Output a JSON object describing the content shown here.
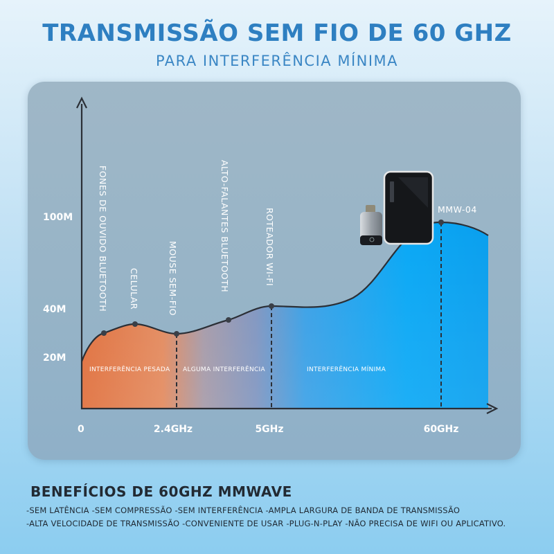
{
  "header": {
    "title": "TRANSMISSÃO SEM FIO DE 60 GHZ",
    "subtitle": "PARA INTERFERÊNCIA MÍNIMA"
  },
  "chart_data": {
    "type": "area",
    "title": "",
    "xlabel": "",
    "ylabel": "",
    "x_ticks": [
      "0",
      "2.4GHz",
      "5GHz",
      "60GHz"
    ],
    "y_ticks": [
      "20M",
      "40M",
      "100M"
    ],
    "points": [
      {
        "label": "FONES DE OUVIDO BLUETOOTH"
      },
      {
        "label": "CELULAR"
      },
      {
        "label": "MOUSE SEM-FIO"
      },
      {
        "label": "ALTO-FALANTES BLUETOOTH"
      },
      {
        "label": "ROTEADOR WI-FI"
      },
      {
        "label": "MMW-04"
      }
    ],
    "zones": [
      {
        "label": "INTERFERÊNCIA PESADA",
        "color": "#e37b45"
      },
      {
        "label": "ALGUMA INTERFERÊNCIA",
        "color": "#8a95b8"
      },
      {
        "label": "INTERFERÊNCIA MÍNIMA",
        "color": "#0aa3f2"
      }
    ],
    "grid": false
  },
  "benefits": {
    "title": "BENEFÍCIOS DE 60GHZ MMWAVE",
    "line1": "-SEM LATÊNCIA -SEM COMPRESSÃO -SEM INTERFERÊNCIA -AMPLA LARGURA DE BANDA DE TRANSMISSÃO",
    "line2": "-ALTA VELOCIDADE DE TRANSMISSÃO -CONVENIENTE DE USAR -PLUG-N-PLAY -NÃO PRECISA DE WIFI OU APLICATIVO."
  }
}
